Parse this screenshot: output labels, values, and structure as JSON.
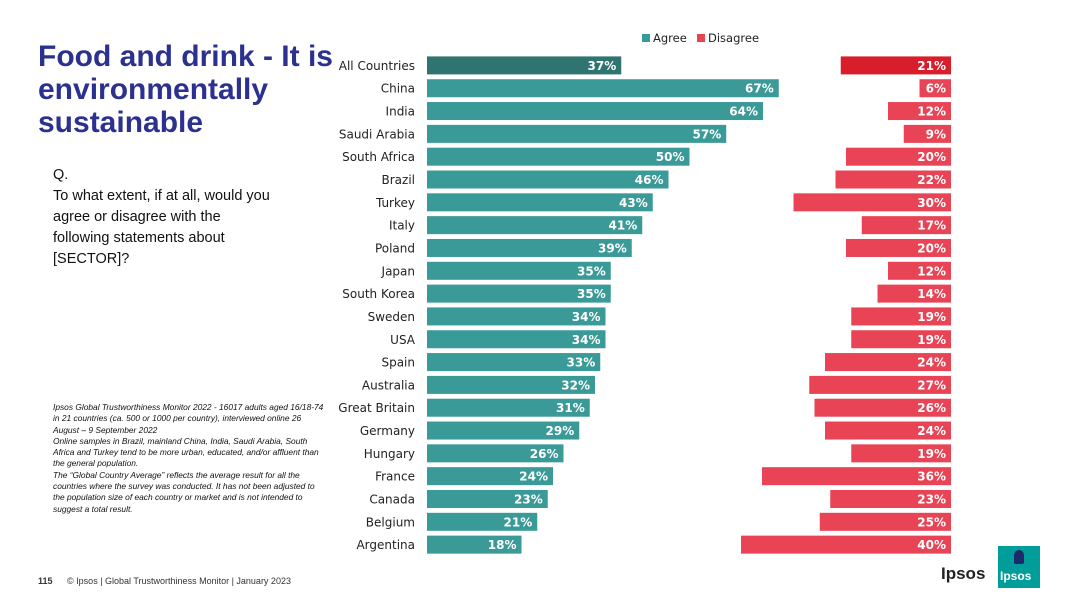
{
  "title": "Food and drink - It is environmentally sustainable",
  "question": "Q.\nTo what extent, if at all, would you agree or disagree with the following statements about [SECTOR]?",
  "note": "Ipsos Global Trustworthiness Monitor 2022 - 16017 adults aged 16/18-74 in 21 countries (ca. 500 or 1000 per country), interviewed online 26 August – 9 September 2022\nOnline samples in Brazil, mainland China, India, Saudi Arabia, South Africa and Turkey tend to be more urban, educated, and/or affluent than the general population.\nThe “Global Country Average” reflects the average result for all the countries where the survey was conducted. It has not been adjusted to the population size of each country or market and is not intended to suggest a total result.",
  "footer": {
    "page_number": "115",
    "text": "© Ipsos | Global Trustworthiness Monitor | January 2023"
  },
  "logo": {
    "text": "Ipsos",
    "box_text": "Ipsos"
  },
  "colors": {
    "agree": "#3a9a97",
    "agree_highlight": "#2f7470",
    "disagree": "#e84455",
    "disagree_highlight": "#d81e2b",
    "title": "#2c3190"
  },
  "chart_data": {
    "type": "bar",
    "orientation": "horizontal",
    "value_suffix": "%",
    "legend_position": "top-right",
    "categories": [
      "All Countries",
      "China",
      "India",
      "Saudi Arabia",
      "South Africa",
      "Brazil",
      "Turkey",
      "Italy",
      "Poland",
      "Japan",
      "South Korea",
      "Sweden",
      "USA",
      "Spain",
      "Australia",
      "Great Britain",
      "Germany",
      "Hungary",
      "France",
      "Canada",
      "Belgium",
      "Argentina"
    ],
    "series": [
      {
        "name": "Agree",
        "values": [
          37,
          67,
          64,
          57,
          50,
          46,
          43,
          41,
          39,
          35,
          35,
          34,
          34,
          33,
          32,
          31,
          29,
          26,
          24,
          23,
          21,
          18
        ]
      },
      {
        "name": "Disagree",
        "values": [
          21,
          6,
          12,
          9,
          20,
          22,
          30,
          17,
          20,
          12,
          14,
          19,
          19,
          24,
          27,
          26,
          24,
          19,
          36,
          23,
          25,
          40
        ]
      }
    ],
    "grid": false
  }
}
